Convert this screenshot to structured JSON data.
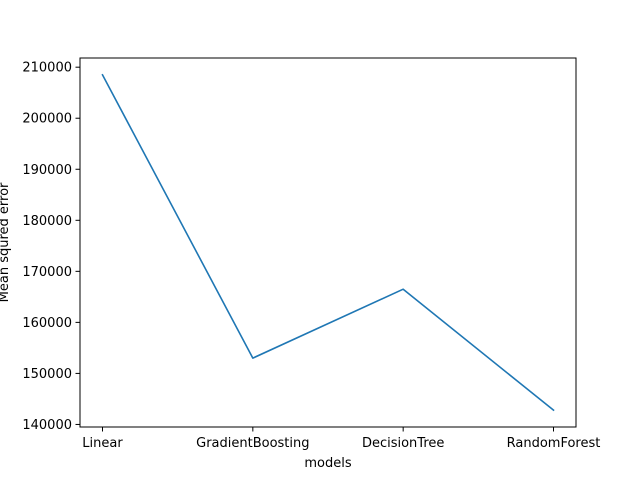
{
  "chart_data": {
    "type": "line",
    "categories": [
      "Linear",
      "GradientBoosting",
      "DecisionTree",
      "RandomForest"
    ],
    "series": [
      {
        "values": [
          208500,
          153000,
          166500,
          142800
        ],
        "color": "#1f77b4"
      }
    ],
    "xlabel": "models",
    "ylabel": "Mean squred error",
    "yticks": [
      140000,
      150000,
      160000,
      170000,
      180000,
      190000,
      200000,
      210000
    ],
    "ytick_labels": [
      "140000",
      "150000",
      "160000",
      "170000",
      "180000",
      "190000",
      "200000",
      "210000"
    ],
    "ylim": [
      139500,
      211800
    ],
    "grid": false,
    "legend": false
  }
}
